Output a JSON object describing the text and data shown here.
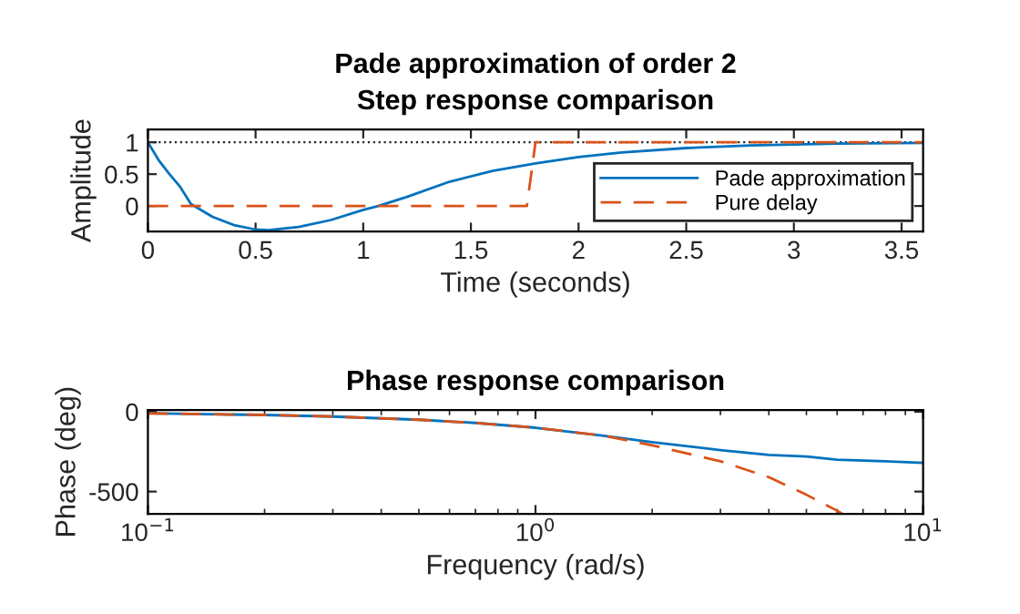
{
  "chart_data": [
    {
      "type": "line",
      "title": "Pade approximation of order 2",
      "subtitle": "Step response comparison",
      "xlabel": "Time (seconds)",
      "ylabel": "Amplitude",
      "xlim": [
        0,
        3.6
      ],
      "xticks": [
        0,
        0.5,
        1,
        1.5,
        2,
        2.5,
        3,
        3.5
      ],
      "ylim": [
        -0.4,
        1.2
      ],
      "yticks": [
        0,
        0.5,
        1
      ],
      "grid": false,
      "legend": "bottom right",
      "ref_lines": [
        {
          "axis": "y",
          "value": 1,
          "color": "#262626",
          "line_style": "dotted"
        }
      ],
      "series": [
        {
          "name": "Pade approximation",
          "color": "#0072bd",
          "line_style": "solid",
          "x": [
            0,
            0.05,
            0.1,
            0.15,
            0.2,
            0.3,
            0.4,
            0.5,
            0.56,
            0.7,
            0.85,
            1.0,
            1.07,
            1.2,
            1.4,
            1.6,
            1.8,
            2.0,
            2.2,
            2.5,
            2.8,
            3.2,
            3.6
          ],
          "values": [
            1,
            0.72,
            0.5,
            0.3,
            0.03,
            -0.17,
            -0.3,
            -0.37,
            -0.38,
            -0.33,
            -0.22,
            -0.06,
            0,
            0.14,
            0.38,
            0.55,
            0.67,
            0.77,
            0.84,
            0.91,
            0.95,
            0.98,
            0.99
          ]
        },
        {
          "name": "Pure delay",
          "color": "#d95319",
          "line_style": "dashed",
          "x": [
            0,
            1.76,
            1.8,
            3.6
          ],
          "values": [
            0,
            0,
            1,
            1
          ]
        }
      ]
    },
    {
      "type": "line",
      "title": "Phase response comparison",
      "xlabel": "Frequency (rad/s)",
      "ylabel": "Phase (deg)",
      "log": "x",
      "xlim": [
        0.1,
        10
      ],
      "xticks": [
        {
          "value": 0.1,
          "label": "10$^{−1}$"
        },
        {
          "value": 1,
          "label": "10$^{0}$"
        },
        {
          "value": 10,
          "label": "10$^{1}$"
        }
      ],
      "ylim": [
        -640,
        10
      ],
      "yticks": [
        -500,
        0
      ],
      "grid": false,
      "legend": false,
      "series": [
        {
          "color": "#0072bd",
          "line_style": "solid",
          "x": [
            0.1,
            0.2,
            0.3,
            0.5,
            0.7,
            1,
            1.5,
            2,
            3,
            4,
            5,
            6,
            8,
            10
          ],
          "values": [
            -10,
            -20,
            -30,
            -50,
            -70,
            -100,
            -150,
            -190,
            -240,
            -270,
            -280,
            -300,
            -310,
            -320
          ]
        },
        {
          "color": "#d95319",
          "line_style": "dashed",
          "x": [
            0.1,
            0.2,
            0.3,
            0.5,
            0.7,
            1,
            1.5,
            2,
            3,
            4,
            5,
            6,
            6.2
          ],
          "values": [
            -10,
            -20,
            -30,
            -50,
            -70,
            -100,
            -150,
            -210,
            -310,
            -410,
            -520,
            -620,
            -640
          ]
        }
      ]
    }
  ]
}
